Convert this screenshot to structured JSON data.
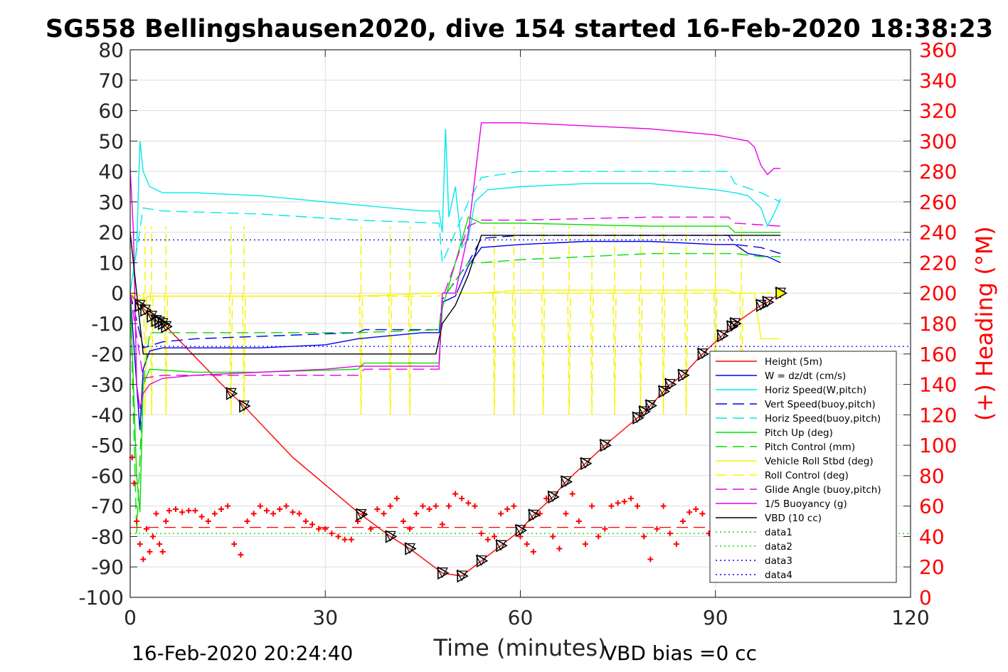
{
  "chart_data": {
    "type": "line",
    "title": "SG558 Bellingshausen2020, dive 154 started 16-Feb-2020 18:38:23",
    "xlabel": "Time (minutes)",
    "ylabel": "",
    "y2label": "(+) Heading (°M)",
    "xlim": [
      0,
      120
    ],
    "ylim": [
      -100,
      80
    ],
    "y2lim": [
      0,
      360
    ],
    "xticks": [
      "0",
      "30",
      "60",
      "90",
      "120"
    ],
    "yticks": [
      "-100",
      "-90",
      "-80",
      "-70",
      "-60",
      "-50",
      "-40",
      "-30",
      "-20",
      "-10",
      "0",
      "10",
      "20",
      "30",
      "40",
      "50",
      "60",
      "70",
      "80"
    ],
    "y2ticks": [
      "0",
      "20",
      "40",
      "60",
      "80",
      "100",
      "120",
      "140",
      "160",
      "180",
      "200",
      "220",
      "240",
      "260",
      "280",
      "300",
      "320",
      "340",
      "360"
    ],
    "grid": true,
    "legend_position": "lower-right",
    "footer_left": "16-Feb-2020 20:24:40",
    "footer_right": "VBD bias =0 cc",
    "colors": {
      "red": "#ff0000",
      "blue": "#0000ee",
      "cyan": "#00eaea",
      "green": "#00dd00",
      "yellow": "#f5f500",
      "magenta": "#e600e6",
      "black": "#000000"
    },
    "series": [
      {
        "name": "Height (5m)",
        "color": "#ff0000",
        "style": "solid",
        "x": [
          0,
          1,
          2,
          3,
          4,
          5,
          6,
          10,
          15,
          17,
          25,
          35,
          40,
          43,
          48,
          51,
          54,
          57,
          60,
          62,
          65,
          67,
          70,
          73,
          78,
          80,
          83,
          85,
          88,
          91,
          93,
          97,
          98,
          100
        ],
        "y": [
          0,
          -3,
          -5,
          -7,
          -9,
          -10,
          -12,
          -21,
          -32,
          -36,
          -54,
          -72,
          -80,
          -84,
          -92,
          -93,
          -88,
          -83,
          -78,
          -73,
          -67,
          -62,
          -56,
          -50,
          -41,
          -37,
          -30,
          -27,
          -20,
          -14,
          -10,
          -4,
          -3,
          0
        ]
      },
      {
        "name": "W = dz/dt (cm/s)",
        "color": "#0000ee",
        "style": "solid",
        "x": [
          0,
          1,
          1.5,
          2,
          3,
          5,
          10,
          20,
          30,
          35,
          40,
          45,
          47.5,
          48,
          50,
          52,
          54,
          60,
          70,
          80,
          90,
          93,
          95,
          98,
          100
        ],
        "y": [
          0,
          -30,
          -45,
          -25,
          -19,
          -18,
          -18,
          -18,
          -17,
          -15,
          -14,
          -13,
          -13,
          -3,
          -1,
          9,
          15,
          16,
          17,
          17,
          16,
          16,
          13,
          12,
          10
        ]
      },
      {
        "name": "Horiz Speed(W,pitch)",
        "color": "#00eaea",
        "style": "solid",
        "x": [
          0,
          1,
          1.5,
          2,
          3,
          5,
          10,
          20,
          30,
          35,
          40,
          45,
          47.5,
          48,
          48.5,
          49,
          50,
          51,
          52,
          53,
          55,
          60,
          70,
          80,
          90,
          93,
          95,
          97,
          98,
          99,
          100
        ],
        "y": [
          0,
          15,
          50,
          40,
          35,
          33,
          33,
          32,
          30,
          29,
          28,
          27,
          27,
          20,
          54,
          25,
          35,
          15,
          18,
          30,
          34,
          35,
          36,
          36,
          34,
          33,
          32,
          28,
          22,
          26,
          31
        ]
      },
      {
        "name": "Vert Speed(buoy,pitch)",
        "color": "#0000ee",
        "style": "dashed",
        "x": [
          0,
          2,
          5,
          10,
          35,
          36,
          47.5,
          48,
          52,
          54,
          60,
          80,
          92,
          93,
          97,
          100
        ],
        "y": [
          0,
          -18,
          -16,
          -15,
          -13,
          -12,
          -12,
          -2,
          10,
          18,
          19,
          19,
          19,
          16,
          15,
          13
        ]
      },
      {
        "name": "Horiz Speed(buoy,pitch)",
        "color": "#00eaea",
        "style": "dashed",
        "x": [
          0,
          2,
          5,
          20,
          35,
          47.5,
          48,
          52,
          54,
          60,
          80,
          92,
          93,
          97,
          100
        ],
        "y": [
          0,
          28,
          27,
          26,
          24,
          23,
          10,
          30,
          38,
          40,
          40,
          40,
          36,
          33,
          30
        ]
      },
      {
        "name": "Pitch Up (deg)",
        "color": "#00dd00",
        "style": "solid",
        "x": [
          0,
          1,
          1.5,
          2,
          3,
          10,
          20,
          35,
          36,
          47.5,
          48,
          52,
          54,
          60,
          80,
          92,
          93,
          100
        ],
        "y": [
          0,
          -60,
          -72,
          -30,
          -25,
          -26,
          -26,
          -25,
          -23,
          -23,
          -5,
          25,
          23,
          23,
          22,
          22,
          20,
          20
        ]
      },
      {
        "name": "Pitch Control (mm)",
        "color": "#00dd00",
        "style": "dashed",
        "x": [
          0,
          1,
          2,
          3,
          10,
          35,
          47.5,
          48,
          52,
          54,
          60,
          80,
          92,
          93,
          97,
          100
        ],
        "y": [
          0,
          -79,
          -30,
          -13,
          -13,
          -13,
          -12,
          -2,
          10,
          10,
          11,
          13,
          13,
          13,
          12,
          12
        ]
      },
      {
        "name": "Vehicle Roll Stbd (deg)",
        "color": "#f5f500",
        "style": "solid",
        "x": [
          0,
          1,
          2,
          3,
          10,
          20,
          35,
          47,
          47.5,
          48,
          52,
          54,
          60,
          80,
          92,
          93,
          96,
          97,
          98,
          100
        ],
        "y": [
          0,
          -2,
          -2,
          -1,
          -1,
          -1,
          -1,
          0,
          0,
          0,
          0,
          0,
          1,
          1,
          1,
          0,
          0,
          -15,
          -15,
          -15
        ]
      },
      {
        "name": "Roll Control (deg)",
        "color": "#f5f500",
        "style": "dashed",
        "x": [
          0,
          2,
          5,
          10,
          20,
          30,
          40,
          47.5,
          48,
          60,
          80,
          90,
          100
        ],
        "y": [
          0,
          -1,
          -1,
          -1,
          -1,
          -1,
          -1,
          -1,
          0,
          0,
          0,
          0,
          0
        ]
      },
      {
        "name": "Glide Angle (buoy,pitch)",
        "color": "#e600e6",
        "style": "dashed",
        "x": [
          0,
          2,
          5,
          20,
          35,
          36,
          47.5,
          48,
          52,
          54,
          60,
          80,
          92,
          93,
          100
        ],
        "y": [
          0,
          -28,
          -27,
          -27,
          -27,
          -25,
          -25,
          -2,
          22,
          24,
          24,
          25,
          25,
          23,
          22
        ]
      },
      {
        "name": "1/5 Buoyancy (g)",
        "color": "#e600e6",
        "style": "solid",
        "x": [
          0,
          0.5,
          1,
          1.5,
          2,
          3,
          5,
          10,
          20,
          30,
          35,
          40,
          47.5,
          48,
          50,
          52,
          54,
          60,
          70,
          80,
          90,
          95,
          96,
          97,
          98,
          99,
          100
        ],
        "y": [
          41,
          20,
          -30,
          -38,
          -33,
          -30,
          -28,
          -27,
          -26,
          -25,
          -24,
          -24,
          -24,
          0,
          0,
          20,
          56,
          56,
          55,
          54,
          52,
          50,
          48,
          42,
          39,
          41,
          41
        ]
      },
      {
        "name": "VBD (10 cc)",
        "color": "#000000",
        "style": "solid",
        "x": [
          0,
          1,
          2,
          10,
          20,
          30,
          40,
          47,
          48,
          50,
          52,
          54,
          60,
          80,
          100
        ],
        "y": [
          20,
          0,
          -20,
          -20,
          -20,
          -20,
          -20,
          -20,
          -10,
          -4,
          6,
          19,
          19,
          19,
          19
        ]
      },
      {
        "name": "data1",
        "color": "#00dd00",
        "style": "dotted",
        "x": [
          0,
          120
        ],
        "y": [
          -79,
          -79
        ]
      },
      {
        "name": "data2",
        "color": "#00dd00",
        "style": "dotted",
        "x": [
          0,
          120
        ],
        "y": [
          -79,
          -79
        ]
      },
      {
        "name": "data3",
        "color": "#0000ee",
        "style": "dotted",
        "x": [
          0,
          120
        ],
        "y": [
          17.5,
          17.5
        ]
      },
      {
        "name": "data4",
        "color": "#0000ee",
        "style": "dotted",
        "x": [
          0,
          120
        ],
        "y": [
          -17.5,
          -17.5
        ]
      }
    ],
    "roll_spikes": {
      "times": [
        2.3,
        3.3,
        5.5,
        15.5,
        17.5,
        40,
        35.5,
        43,
        56,
        59,
        63.5,
        67.5,
        71,
        74.5,
        78.5,
        82,
        85.5,
        90,
        94
      ],
      "min": -40,
      "max": 22
    },
    "triangle_markers": {
      "times": [
        1.5,
        2.3,
        3.3,
        4,
        4.5,
        5,
        5.5,
        15.5,
        17.5,
        35.5,
        40,
        43,
        48,
        51,
        54,
        57,
        60,
        62,
        65,
        67,
        70,
        73,
        78,
        79,
        80,
        82,
        83,
        85,
        88,
        91,
        92.5,
        93,
        97,
        98,
        100
      ]
    },
    "heading": {
      "name": "Heading (+)",
      "color": "#ff0000",
      "mean_line": 46,
      "x": [
        0.3,
        0.6,
        1,
        1.5,
        2,
        2.5,
        3,
        3.5,
        4,
        4.5,
        5,
        5.5,
        6,
        7,
        8,
        9,
        10,
        11,
        12,
        13,
        14,
        15,
        16,
        17,
        18,
        19,
        20,
        21,
        22,
        23,
        24,
        25,
        26,
        27,
        28,
        29,
        30,
        31,
        32,
        33,
        34,
        35,
        36,
        37,
        38,
        39,
        40,
        41,
        42,
        43,
        44,
        45,
        46,
        47,
        48,
        49,
        50,
        51,
        52,
        53,
        54,
        55,
        56,
        57,
        58,
        59,
        60,
        61,
        62,
        63,
        64,
        65,
        66,
        67,
        68,
        69,
        70,
        71,
        72,
        73,
        74,
        75,
        76,
        77,
        78,
        79,
        80,
        81,
        82,
        83,
        84,
        85,
        86,
        87,
        88,
        89,
        90,
        91,
        92,
        93,
        94,
        95,
        96,
        97,
        98
      ],
      "y": [
        92,
        75,
        50,
        35,
        25,
        45,
        30,
        40,
        55,
        35,
        30,
        50,
        57,
        58,
        56,
        57,
        57,
        53,
        50,
        55,
        58,
        60,
        35,
        28,
        50,
        55,
        60,
        57,
        55,
        58,
        60,
        56,
        55,
        50,
        48,
        45,
        45,
        42,
        40,
        38,
        38,
        50,
        55,
        45,
        58,
        55,
        60,
        65,
        50,
        45,
        55,
        60,
        58,
        60,
        48,
        60,
        68,
        65,
        62,
        60,
        42,
        38,
        40,
        55,
        58,
        60,
        40,
        35,
        30,
        55,
        65,
        40,
        32,
        55,
        68,
        50,
        35,
        60,
        40,
        45,
        60,
        62,
        63,
        65,
        60,
        40,
        25,
        45,
        60,
        42,
        35,
        50,
        56,
        58,
        55,
        42,
        38,
        45,
        58,
        60,
        35,
        42,
        50,
        55,
        45
      ]
    }
  }
}
